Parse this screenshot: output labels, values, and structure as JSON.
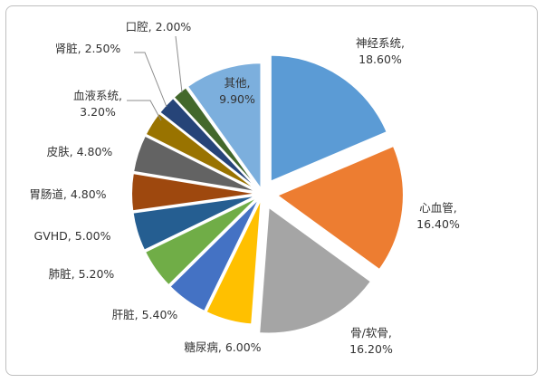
{
  "chart_data": {
    "type": "pie",
    "title": "",
    "slices": [
      {
        "name": "神经系统",
        "value": 18.6,
        "label": "18.60%",
        "color": "#5b9bd5"
      },
      {
        "name": "心血管",
        "value": 16.4,
        "label": "16.40%",
        "color": "#ed7d31"
      },
      {
        "name": "骨/软骨",
        "value": 16.2,
        "label": "16.20%",
        "color": "#a5a5a5"
      },
      {
        "name": "糖尿病",
        "value": 6.0,
        "label": "6.00%",
        "color": "#ffc000"
      },
      {
        "name": "肝脏",
        "value": 5.4,
        "label": "5.40%",
        "color": "#4472c4"
      },
      {
        "name": "肺脏",
        "value": 5.2,
        "label": "5.20%",
        "color": "#70ad47"
      },
      {
        "name": "GVHD",
        "value": 5.0,
        "label": "5.00%",
        "color": "#255e91"
      },
      {
        "name": "胃肠道",
        "value": 4.8,
        "label": "4.80%",
        "color": "#9e480e"
      },
      {
        "name": "皮肤",
        "value": 4.8,
        "label": "4.80%",
        "color": "#636363"
      },
      {
        "name": "血液系统",
        "value": 3.2,
        "label": "3.20%",
        "color": "#997300"
      },
      {
        "name": "肾脏",
        "value": 2.5,
        "label": "2.50%",
        "color": "#264478"
      },
      {
        "name": "口腔",
        "value": 2.0,
        "label": "2.00%",
        "color": "#43682b"
      },
      {
        "name": "其他",
        "value": 9.9,
        "label": "9.90%",
        "color": "#7cafdd"
      }
    ],
    "exploded": true,
    "legend": "none",
    "label_style": "category, percentage"
  }
}
